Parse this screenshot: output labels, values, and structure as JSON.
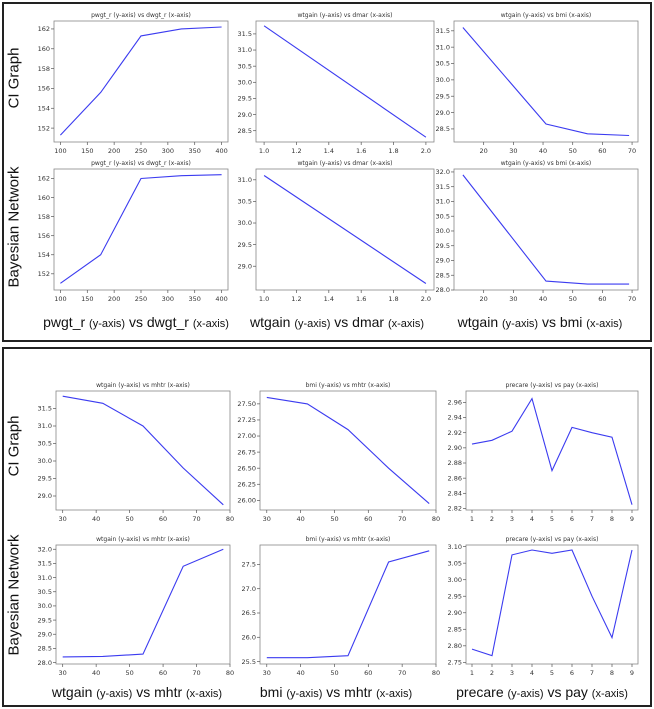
{
  "sections": [
    {
      "row_labels": [
        "CI Graph",
        "Bayesian Network"
      ],
      "captions": [
        {
          "var": "pwgt_r",
          "y_tag": "(y-axis)",
          "vs": "vs",
          "xvar": "dwgt_r",
          "x_tag": "(x-axis)"
        },
        {
          "var": "wtgain",
          "y_tag": "(y-axis)",
          "vs": "vs",
          "xvar": "dmar",
          "x_tag": "(x-axis)"
        },
        {
          "var": "wtgain",
          "y_tag": "(y-axis)",
          "vs": "vs",
          "xvar": "bmi",
          "x_tag": "(x-axis)"
        }
      ]
    },
    {
      "row_labels": [
        "CI Graph",
        "Bayesian Network"
      ],
      "captions": [
        {
          "var": "wtgain",
          "y_tag": "(y-axis)",
          "vs": "vs",
          "xvar": "mhtr",
          "x_tag": "(x-axis)"
        },
        {
          "var": "bmi",
          "y_tag": "(y-axis)",
          "vs": "vs",
          "xvar": "mhtr",
          "x_tag": "(x-axis)"
        },
        {
          "var": "precare",
          "y_tag": "(y-axis)",
          "vs": "vs",
          "xvar": "pay",
          "x_tag": "(x-axis)"
        }
      ]
    }
  ],
  "colors": {
    "line": "#3b3bf0",
    "axis": "#555555",
    "frame": "#222222"
  },
  "chart_data": [
    {
      "id": "c1",
      "type": "line",
      "title": "pwgt_r (y-axis) vs dwgt_r (x-axis)",
      "x": [
        100,
        175,
        250,
        325,
        400
      ],
      "y": [
        151.3,
        155.6,
        161.3,
        162.0,
        162.2
      ],
      "xlim": [
        88,
        412
      ],
      "ylim": [
        150.6,
        162.8
      ],
      "xticks": [
        100,
        150,
        200,
        250,
        300,
        350,
        400
      ],
      "yticks": [
        152,
        154,
        156,
        158,
        160,
        162
      ],
      "xtick_labels": [
        "100",
        "150",
        "200",
        "250",
        "300",
        "350",
        "400"
      ],
      "ytick_labels": [
        "152",
        "154",
        "156",
        "158",
        "160",
        "162"
      ]
    },
    {
      "id": "c2",
      "type": "line",
      "title": "wtgain (y-axis) vs dmar (x-axis)",
      "x": [
        1.0,
        2.0
      ],
      "y": [
        31.75,
        28.3
      ],
      "xlim": [
        0.95,
        2.05
      ],
      "ylim": [
        28.15,
        31.9
      ],
      "xticks": [
        1.0,
        1.2,
        1.4,
        1.6,
        1.8,
        2.0
      ],
      "yticks": [
        28.5,
        29.0,
        29.5,
        30.0,
        30.5,
        31.0,
        31.5
      ],
      "xtick_labels": [
        "1.0",
        "1.2",
        "1.4",
        "1.6",
        "1.8",
        "2.0"
      ],
      "ytick_labels": [
        "28.5",
        "29.0",
        "29.5",
        "30.0",
        "30.5",
        "31.0",
        "31.5"
      ]
    },
    {
      "id": "c3",
      "type": "line",
      "title": "wtgain (y-axis) vs bmi (x-axis)",
      "x": [
        13,
        41,
        55,
        69
      ],
      "y": [
        31.6,
        28.65,
        28.35,
        28.3
      ],
      "xlim": [
        10,
        72
      ],
      "ylim": [
        28.1,
        31.8
      ],
      "xticks": [
        20,
        30,
        40,
        50,
        60,
        70
      ],
      "yticks": [
        28.5,
        29.0,
        29.5,
        30.0,
        30.5,
        31.0,
        31.5
      ],
      "xtick_labels": [
        "20",
        "30",
        "40",
        "50",
        "60",
        "70"
      ],
      "ytick_labels": [
        "28.5",
        "29.0",
        "29.5",
        "30.0",
        "30.5",
        "31.0",
        "31.5"
      ]
    },
    {
      "id": "c4",
      "type": "line",
      "title": "pwgt_r (y-axis) vs dwgt_r (x-axis)",
      "x": [
        100,
        175,
        250,
        325,
        400
      ],
      "y": [
        151.0,
        154.0,
        162.0,
        162.3,
        162.4
      ],
      "xlim": [
        88,
        412
      ],
      "ylim": [
        150.3,
        163.0
      ],
      "xticks": [
        100,
        150,
        200,
        250,
        300,
        350,
        400
      ],
      "yticks": [
        152,
        154,
        156,
        158,
        160,
        162
      ],
      "xtick_labels": [
        "100",
        "150",
        "200",
        "250",
        "300",
        "350",
        "400"
      ],
      "ytick_labels": [
        "152",
        "154",
        "156",
        "158",
        "160",
        "162"
      ]
    },
    {
      "id": "c5",
      "type": "line",
      "title": "wtgain (y-axis) vs dmar (x-axis)",
      "x": [
        1.0,
        2.0
      ],
      "y": [
        31.1,
        28.6
      ],
      "xlim": [
        0.95,
        2.05
      ],
      "ylim": [
        28.45,
        31.25
      ],
      "xticks": [
        1.0,
        1.2,
        1.4,
        1.6,
        1.8,
        2.0
      ],
      "yticks": [
        29.0,
        29.5,
        30.0,
        30.5,
        31.0
      ],
      "xtick_labels": [
        "1.0",
        "1.2",
        "1.4",
        "1.6",
        "1.8",
        "2.0"
      ],
      "ytick_labels": [
        "29.0",
        "29.5",
        "30.0",
        "30.5",
        "31.0"
      ]
    },
    {
      "id": "c6",
      "type": "line",
      "title": "wtgain (y-axis) vs bmi (x-axis)",
      "x": [
        13,
        41,
        55,
        69
      ],
      "y": [
        31.9,
        28.3,
        28.2,
        28.2
      ],
      "xlim": [
        10,
        72
      ],
      "ylim": [
        28.0,
        32.1
      ],
      "xticks": [
        20,
        30,
        40,
        50,
        60,
        70
      ],
      "yticks": [
        28.0,
        28.5,
        29.0,
        29.5,
        30.0,
        30.5,
        31.0,
        31.5,
        32.0
      ],
      "xtick_labels": [
        "20",
        "30",
        "40",
        "50",
        "60",
        "70"
      ],
      "ytick_labels": [
        "28.0",
        "28.5",
        "29.0",
        "29.5",
        "30.0",
        "30.5",
        "31.0",
        "31.5",
        "32.0"
      ]
    },
    {
      "id": "c7",
      "type": "line",
      "title": "wtgain (y-axis) vs mhtr (x-axis)",
      "x": [
        30,
        42,
        54,
        66,
        78
      ],
      "y": [
        31.85,
        31.65,
        31.0,
        29.8,
        28.75
      ],
      "xlim": [
        28,
        80
      ],
      "ylim": [
        28.6,
        32.0
      ],
      "xticks": [
        30,
        40,
        50,
        60,
        70,
        80
      ],
      "yticks": [
        29.0,
        29.5,
        30.0,
        30.5,
        31.0,
        31.5
      ],
      "xtick_labels": [
        "30",
        "40",
        "50",
        "60",
        "70",
        "80"
      ],
      "ytick_labels": [
        "29.0",
        "29.5",
        "30.0",
        "30.5",
        "31.0",
        "31.5"
      ]
    },
    {
      "id": "c8",
      "type": "line",
      "title": "bmi (y-axis) vs mhtr (x-axis)",
      "x": [
        30,
        42,
        54,
        66,
        78
      ],
      "y": [
        27.6,
        27.5,
        27.1,
        26.5,
        25.95
      ],
      "xlim": [
        28,
        80
      ],
      "ylim": [
        25.85,
        27.7
      ],
      "xticks": [
        30,
        40,
        50,
        60,
        70,
        80
      ],
      "yticks": [
        26.0,
        26.25,
        26.5,
        26.75,
        27.0,
        27.25,
        27.5
      ],
      "xtick_labels": [
        "30",
        "40",
        "50",
        "60",
        "70",
        "80"
      ],
      "ytick_labels": [
        "26.00",
        "26.25",
        "26.50",
        "26.75",
        "27.00",
        "27.25",
        "27.50"
      ]
    },
    {
      "id": "c9",
      "type": "line",
      "title": "precare (y-axis) vs pay (x-axis)",
      "x": [
        1,
        2,
        3,
        4,
        5,
        6,
        7,
        8,
        9
      ],
      "y": [
        2.905,
        2.91,
        2.922,
        2.965,
        2.87,
        2.927,
        2.92,
        2.914,
        2.825
      ],
      "xlim": [
        0.7,
        9.3
      ],
      "ylim": [
        2.818,
        2.975
      ],
      "xticks": [
        1,
        2,
        3,
        4,
        5,
        6,
        7,
        8,
        9
      ],
      "yticks": [
        2.82,
        2.84,
        2.86,
        2.88,
        2.9,
        2.92,
        2.94,
        2.96
      ],
      "xtick_labels": [
        "1",
        "2",
        "3",
        "4",
        "5",
        "6",
        "7",
        "8",
        "9"
      ],
      "ytick_labels": [
        "2.82",
        "2.84",
        "2.86",
        "2.88",
        "2.90",
        "2.92",
        "2.94",
        "2.96"
      ]
    },
    {
      "id": "c10",
      "type": "line",
      "title": "wtgain (y-axis) vs mhtr (x-axis)",
      "x": [
        30,
        42,
        54,
        66,
        78
      ],
      "y": [
        28.2,
        28.22,
        28.3,
        31.4,
        32.0
      ],
      "xlim": [
        28,
        80
      ],
      "ylim": [
        27.95,
        32.15
      ],
      "xticks": [
        30,
        40,
        50,
        60,
        70,
        80
      ],
      "yticks": [
        28.0,
        28.5,
        29.0,
        29.5,
        30.0,
        30.5,
        31.0,
        31.5,
        32.0
      ],
      "xtick_labels": [
        "30",
        "40",
        "50",
        "60",
        "70",
        "80"
      ],
      "ytick_labels": [
        "28.0",
        "28.5",
        "29.0",
        "29.5",
        "30.0",
        "30.5",
        "31.0",
        "31.5",
        "32.0"
      ]
    },
    {
      "id": "c11",
      "type": "line",
      "title": "bmi (y-axis) vs mhtr (x-axis)",
      "x": [
        30,
        42,
        54,
        66,
        78
      ],
      "y": [
        25.58,
        25.58,
        25.62,
        27.55,
        27.78
      ],
      "xlim": [
        28,
        80
      ],
      "ylim": [
        25.45,
        27.9
      ],
      "xticks": [
        30,
        40,
        50,
        60,
        70,
        80
      ],
      "yticks": [
        25.5,
        26.0,
        26.5,
        27.0,
        27.5
      ],
      "xtick_labels": [
        "30",
        "40",
        "50",
        "60",
        "70",
        "80"
      ],
      "ytick_labels": [
        "25.5",
        "26.0",
        "26.5",
        "27.0",
        "27.5"
      ]
    },
    {
      "id": "c12",
      "type": "line",
      "title": "precare (y-axis) vs pay (x-axis)",
      "x": [
        1,
        2,
        3,
        4,
        5,
        6,
        7,
        8,
        9
      ],
      "y": [
        2.79,
        2.77,
        3.075,
        3.09,
        3.08,
        3.09,
        2.95,
        2.825,
        3.09
      ],
      "xlim": [
        0.7,
        9.3
      ],
      "ylim": [
        2.745,
        3.105
      ],
      "xticks": [
        1,
        2,
        3,
        4,
        5,
        6,
        7,
        8,
        9
      ],
      "yticks": [
        2.75,
        2.8,
        2.85,
        2.9,
        2.95,
        3.0,
        3.05,
        3.1
      ],
      "xtick_labels": [
        "1",
        "2",
        "3",
        "4",
        "5",
        "6",
        "7",
        "8",
        "9"
      ],
      "ytick_labels": [
        "2.75",
        "2.80",
        "2.85",
        "2.90",
        "2.95",
        "3.00",
        "3.05",
        "3.10"
      ]
    }
  ]
}
